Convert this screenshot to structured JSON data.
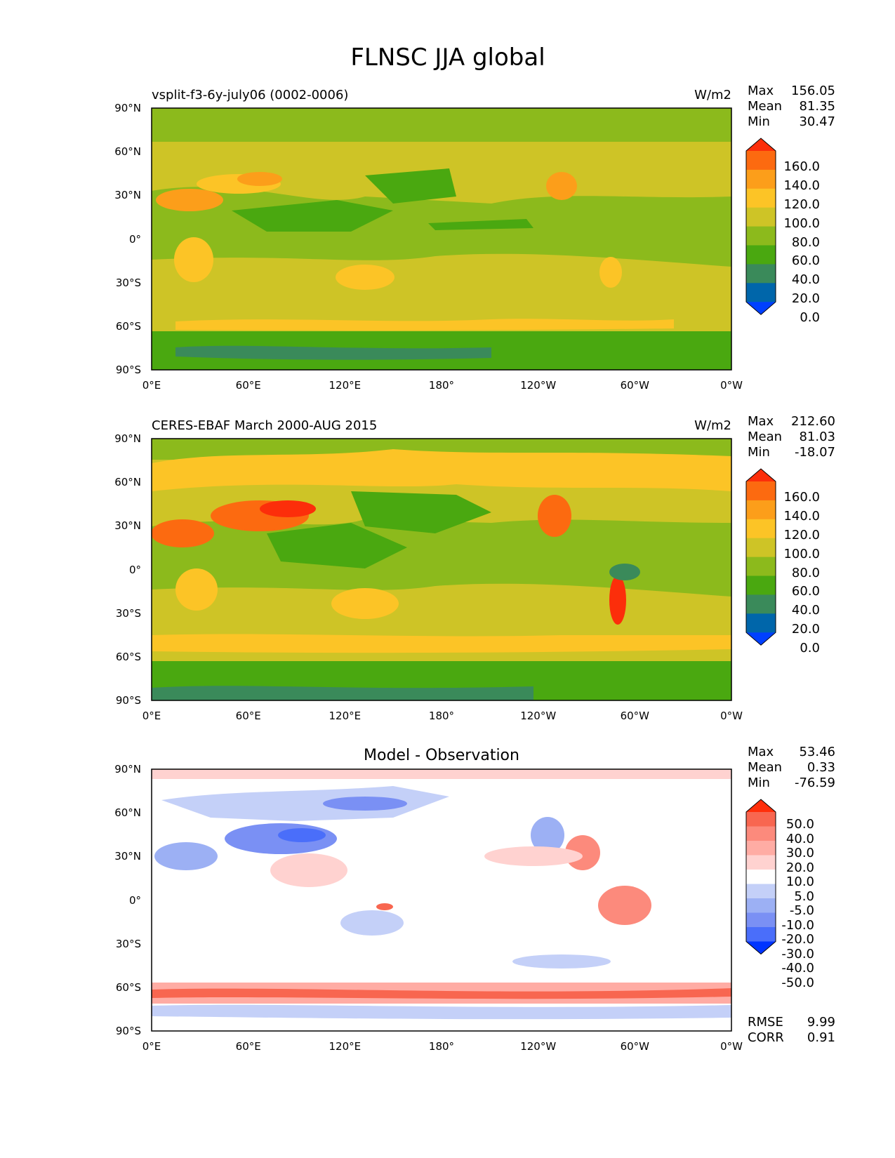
{
  "title": "FLNSC JJA global",
  "colors": {
    "abs_levels": [
      "#0040ff",
      "#0066aa",
      "#3a8a5a",
      "#4aa810",
      "#8cba1c",
      "#cec426",
      "#fcc426",
      "#fc9e1a",
      "#fc6a10",
      "#fc2e0a"
    ],
    "diff_levels": [
      "#0034ff",
      "#4a6efa",
      "#7a90f4",
      "#9cb0f4",
      "#c4d0f8",
      "#ffffff",
      "#ffd2d0",
      "#ffaca4",
      "#fc8a7c",
      "#f86650",
      "#ff2e0a"
    ]
  },
  "x_ticks": [
    "0°E",
    "60°E",
    "120°E",
    "180°",
    "120°W",
    "60°W",
    "0°W"
  ],
  "y_ticks": [
    "90°N",
    "60°N",
    "30°N",
    "0°",
    "30°S",
    "60°S",
    "90°S"
  ],
  "abs_colorbar_labels": [
    "160.0",
    "140.0",
    "120.0",
    "100.0",
    "80.0",
    "60.0",
    "40.0",
    "20.0",
    "0.0"
  ],
  "diff_colorbar_labels": [
    "50.0",
    "40.0",
    "30.0",
    "20.0",
    "10.0",
    "5.0",
    "-5.0",
    "-10.0",
    "-20.0",
    "-30.0",
    "-40.0",
    "-50.0"
  ],
  "panels": [
    {
      "left_title": "vsplit-f3-6y-july06 (0002-0006)",
      "center_title": "",
      "units": "W/m2",
      "stats": [
        {
          "label": "Max",
          "value": "156.05"
        },
        {
          "label": "Mean",
          "value": "81.35"
        },
        {
          "label": "Min",
          "value": "30.47"
        }
      ]
    },
    {
      "left_title": "CERES-EBAF March 2000-AUG 2015",
      "center_title": "",
      "units": "W/m2",
      "stats": [
        {
          "label": "Max",
          "value": "212.60"
        },
        {
          "label": "Mean",
          "value": "81.03"
        },
        {
          "label": "Min",
          "value": "-18.07"
        }
      ]
    },
    {
      "left_title": "",
      "center_title": "Model - Observation",
      "units": "",
      "stats": [
        {
          "label": "Max",
          "value": "53.46"
        },
        {
          "label": "Mean",
          "value": "0.33"
        },
        {
          "label": "Min",
          "value": "-76.59"
        }
      ],
      "extra_stats": [
        {
          "label": "RMSE",
          "value": "9.99"
        },
        {
          "label": "CORR",
          "value": "0.91"
        }
      ]
    }
  ]
}
